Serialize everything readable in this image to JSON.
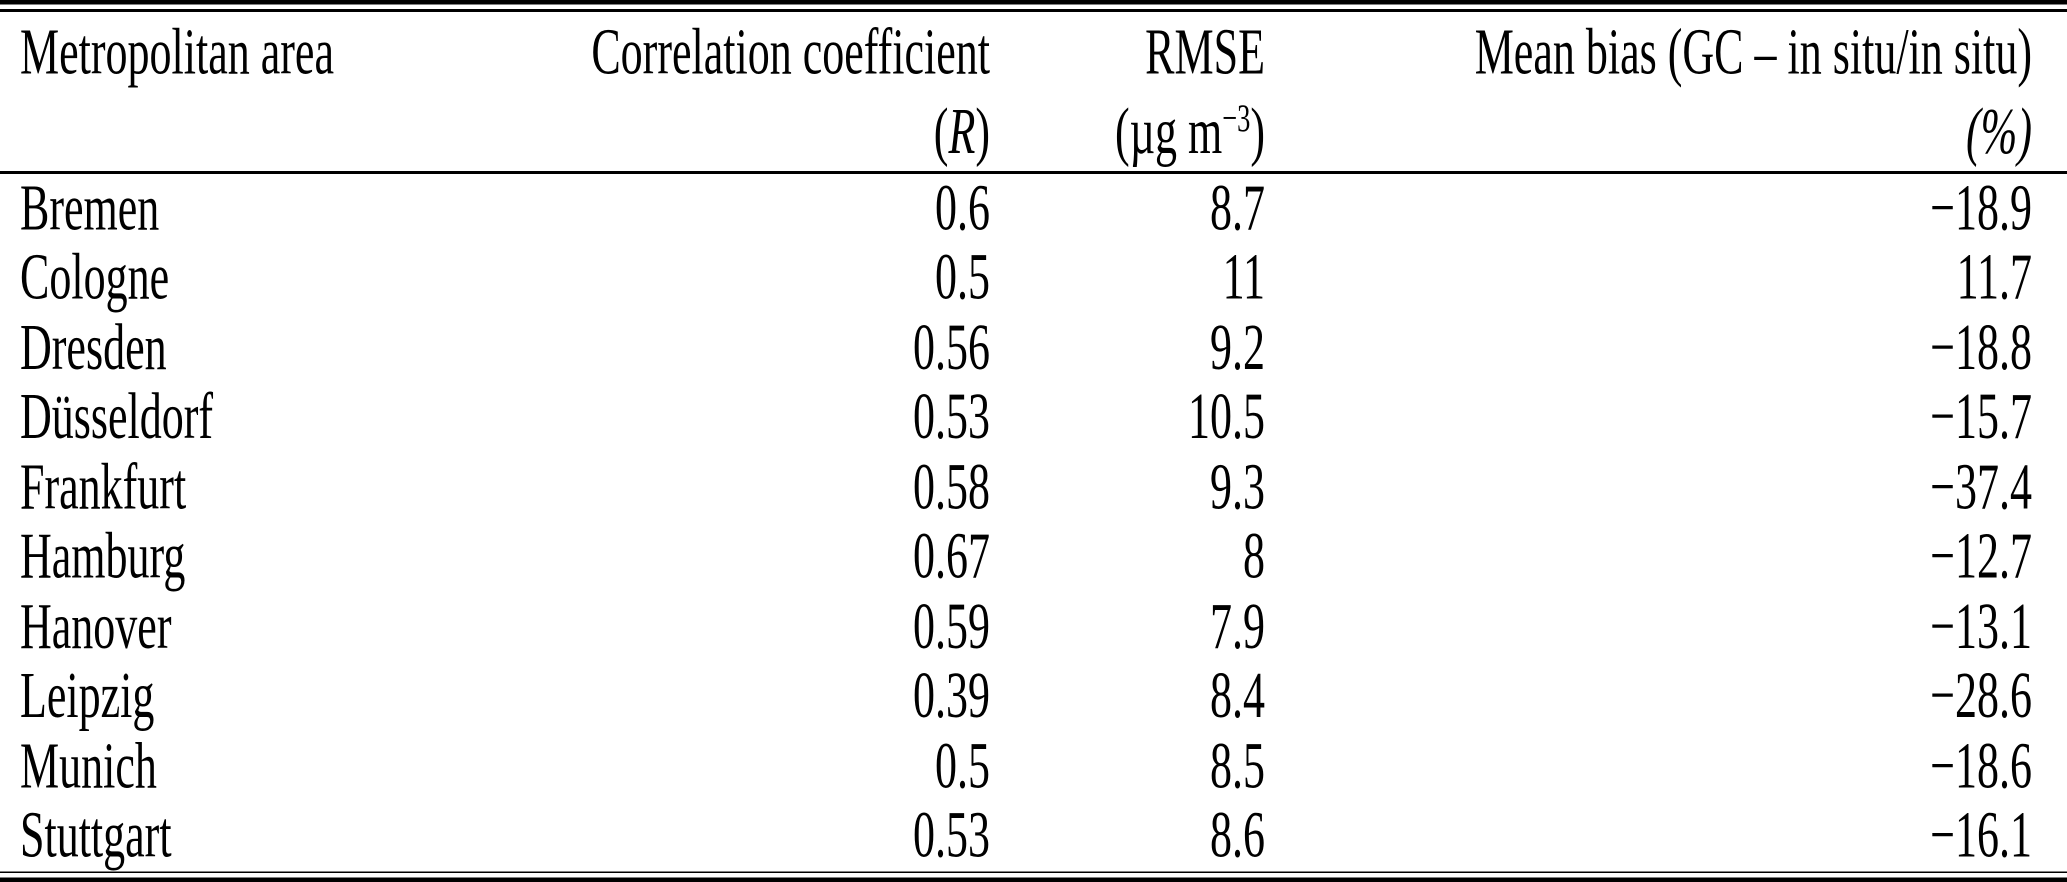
{
  "header": {
    "metro": "Metropolitan area",
    "corr_line1": "Correlation coefficient",
    "corr_open": "(",
    "corr_symbol": "R",
    "corr_close": ")",
    "rmse_line1": "RMSE",
    "rmse_unit_prefix": "(µg m",
    "rmse_unit_sup": "−3",
    "rmse_unit_suffix": ")",
    "bias_line1": "Mean bias (GC – in situ/in situ)",
    "bias_line2": "(%)"
  },
  "rows": [
    {
      "area": "Bremen",
      "r": "0.6",
      "rmse": "8.7",
      "bias": "−18.9"
    },
    {
      "area": "Cologne",
      "r": "0.5",
      "rmse": "11",
      "bias": "11.7"
    },
    {
      "area": "Dresden",
      "r": "0.56",
      "rmse": "9.2",
      "bias": "−18.8"
    },
    {
      "area": "Düsseldorf",
      "r": "0.53",
      "rmse": "10.5",
      "bias": "−15.7"
    },
    {
      "area": "Frankfurt",
      "r": "0.58",
      "rmse": "9.3",
      "bias": "−37.4"
    },
    {
      "area": "Hamburg",
      "r": "0.67",
      "rmse": "8",
      "bias": "−12.7"
    },
    {
      "area": "Hanover",
      "r": "0.59",
      "rmse": "7.9",
      "bias": "−13.1"
    },
    {
      "area": "Leipzig",
      "r": "0.39",
      "rmse": "8.4",
      "bias": "−28.6"
    },
    {
      "area": "Munich",
      "r": "0.5",
      "rmse": "8.5",
      "bias": "−18.6"
    },
    {
      "area": "Stuttgart",
      "r": "0.53",
      "rmse": "8.6",
      "bias": "−16.1"
    }
  ],
  "colors": {
    "text": "#000000",
    "rule": "#000000",
    "background": "#ffffff"
  }
}
